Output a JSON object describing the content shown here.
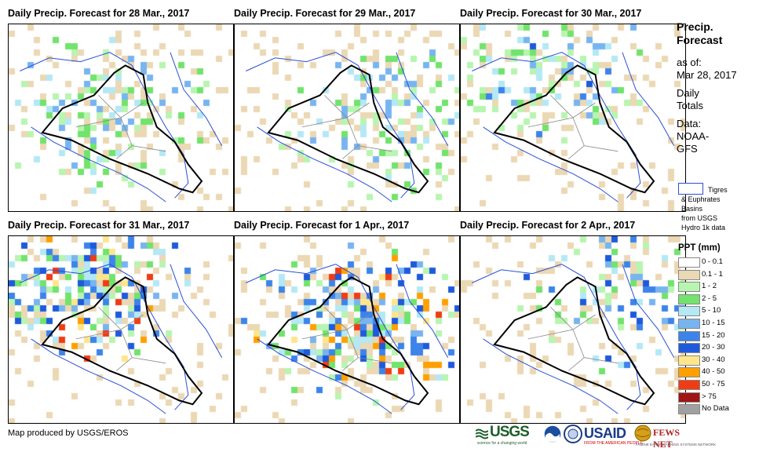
{
  "panels": [
    {
      "title": "Daily Precip. Forecast for 28 Mar., 2017",
      "intensity": [
        0.55,
        0.25,
        0.0,
        0.0
      ],
      "seed": 11,
      "center": "west"
    },
    {
      "title": "Daily Precip. Forecast for 29 Mar., 2017",
      "intensity": [
        0.45,
        0.2,
        0.0,
        0.0
      ],
      "seed": 23,
      "center": "east"
    },
    {
      "title": "Daily Precip. Forecast for 30 Mar., 2017",
      "intensity": [
        0.5,
        0.2,
        0.05,
        0.0
      ],
      "seed": 37,
      "center": "north"
    },
    {
      "title": "Daily Precip. Forecast for 31 Mar., 2017",
      "intensity": [
        0.75,
        0.6,
        0.45,
        0.05
      ],
      "seed": 41,
      "center": "north"
    },
    {
      "title": "Daily Precip. Forecast for 1 Apr., 2017",
      "intensity": [
        0.85,
        0.7,
        0.55,
        0.08
      ],
      "seed": 53,
      "center": "central"
    },
    {
      "title": "Daily Precip. Forecast for 2 Apr., 2017",
      "intensity": [
        0.35,
        0.2,
        0.1,
        0.0
      ],
      "seed": 67,
      "center": "northeast"
    }
  ],
  "sidebar": {
    "title": "Precip. Forecast",
    "asof_label": "as of:",
    "asof_date": "Mar 28, 2017",
    "totals": "Daily Totals",
    "data_label": "Data:",
    "data_source": "NOAA-GFS"
  },
  "basin_legend": {
    "line1": "Tigres",
    "line2": "& Euphrates",
    "line3": "Basins",
    "line4": "from USGS",
    "line5": "Hydro 1k data",
    "color": "#2a4fd6"
  },
  "legend": {
    "title": "PPT (mm)",
    "items": [
      {
        "label": "0 - 0.1",
        "color": "#ffffff"
      },
      {
        "label": "0.1 - 1",
        "color": "#ebd8b4"
      },
      {
        "label": "1 - 2",
        "color": "#b8f5b0"
      },
      {
        "label": "2 - 5",
        "color": "#72e36c"
      },
      {
        "label": "5 - 10",
        "color": "#b4e8f5"
      },
      {
        "label": "10 - 15",
        "color": "#78b4f0"
      },
      {
        "label": "15 - 20",
        "color": "#3c84ea"
      },
      {
        "label": "20 - 30",
        "color": "#1e5adc"
      },
      {
        "label": "30 - 40",
        "color": "#ffe68c"
      },
      {
        "label": "40 - 50",
        "color": "#ffa000"
      },
      {
        "label": "50 - 75",
        "color": "#f03c14"
      },
      {
        "label": "> 75",
        "color": "#a01414"
      },
      {
        "label": "No Data",
        "color": "#a0a0a0"
      }
    ]
  },
  "footer": {
    "credit": "Map produced by USGS/EROS"
  },
  "logos": {
    "usgs": "USGS",
    "usgs_tagline": "science for a changing world",
    "usaid": "USAID",
    "usaid_tagline": "FROM THE AMERICAN PEOPLE",
    "fews": "FEWS NET",
    "fews_tagline": "FAMINE EARLY WARNING SYSTEMS NETWORK"
  }
}
